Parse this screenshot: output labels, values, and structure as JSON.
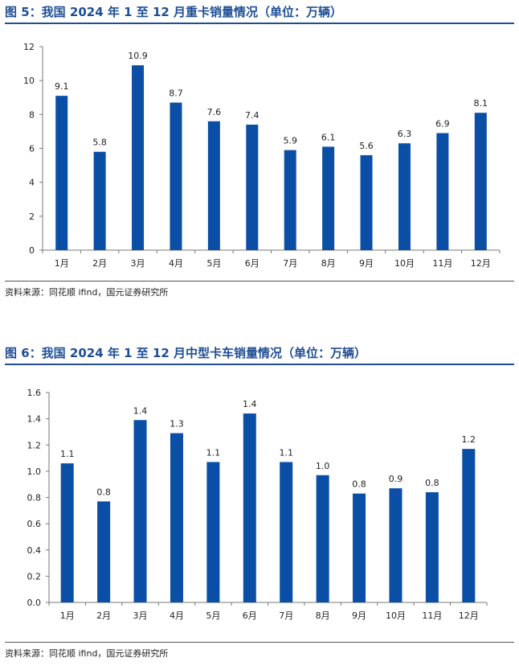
{
  "figures": [
    {
      "title": "图 5：我国 2024 年 1 至 12 月重卡销量情况（单位：万辆）",
      "source": "资料来源：同花顺 ifind，国元证券研究所"
    },
    {
      "title": "图 6：我国 2024 年 1 至 12 月中型卡车销量情况（单位：万辆）",
      "source": "资料来源：同花顺 ifind，国元证券研究所"
    }
  ],
  "colors": {
    "bar": "#0b4ea6",
    "title": "#1f4e96"
  },
  "chart_data": [
    {
      "type": "bar",
      "title": "",
      "xlabel": "",
      "ylabel": "",
      "categories": [
        "1月",
        "2月",
        "3月",
        "4月",
        "5月",
        "6月",
        "7月",
        "8月",
        "9月",
        "10月",
        "11月",
        "12月"
      ],
      "values": [
        9.1,
        5.8,
        10.9,
        8.7,
        7.6,
        7.4,
        5.9,
        6.1,
        5.6,
        6.3,
        6.9,
        8.1
      ],
      "value_labels": [
        "9.1",
        "5.8",
        "10.9",
        "8.7",
        "7.6",
        "7.4",
        "5.9",
        "6.1",
        "5.6",
        "6.3",
        "6.9",
        "8.1"
      ],
      "ylim": [
        0,
        12
      ],
      "yticks": [
        "0",
        "2",
        "4",
        "6",
        "8",
        "10",
        "12"
      ],
      "grid": false,
      "legend": "none"
    },
    {
      "type": "bar",
      "title": "",
      "xlabel": "",
      "ylabel": "",
      "categories": [
        "1月",
        "2月",
        "3月",
        "4月",
        "5月",
        "6月",
        "7月",
        "8月",
        "9月",
        "10月",
        "11月",
        "12月"
      ],
      "values": [
        1.06,
        0.77,
        1.39,
        1.29,
        1.07,
        1.44,
        1.07,
        0.97,
        0.83,
        0.87,
        0.84,
        1.17
      ],
      "value_labels": [
        "1.1",
        "0.8",
        "1.4",
        "1.3",
        "1.1",
        "1.4",
        "1.1",
        "1.0",
        "0.8",
        "0.9",
        "0.8",
        "1.2"
      ],
      "ylim": [
        0,
        1.6
      ],
      "yticks": [
        "0.0",
        "0.2",
        "0.4",
        "0.6",
        "0.8",
        "1.0",
        "1.2",
        "1.4",
        "1.6"
      ],
      "grid": false,
      "legend": "none"
    }
  ]
}
